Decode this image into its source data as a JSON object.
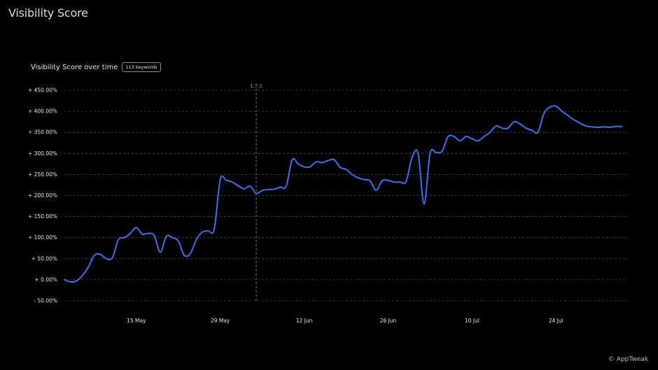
{
  "page": {
    "title": "Visibility Score"
  },
  "chart_header": {
    "title": "Visibility Score over time",
    "badge": "113 keywords"
  },
  "footer": {
    "copyright_symbol": "©",
    "brand": "AppTweak"
  },
  "colors": {
    "line": "#3d6cf5",
    "marker": "#9ea23a",
    "grid": "#4a4a4a",
    "text": "#e6e6e6"
  },
  "chart_data": {
    "type": "line",
    "title": "Visibility Score over time",
    "xlabel": "",
    "ylabel": "",
    "ylim": [
      -50,
      450
    ],
    "y_ticks": [
      450,
      400,
      350,
      300,
      250,
      200,
      150,
      100,
      50,
      0,
      -50
    ],
    "y_tick_labels": [
      "+ 450.00%",
      "+ 400.00%",
      "+ 350.00%",
      "+ 300.00%",
      "+ 250.00%",
      "+ 200.00%",
      "+ 150.00%",
      "+ 100.00%",
      "+ 50.00%",
      "+ 0.00%",
      "- 50.00%"
    ],
    "x_ticks": [
      "2024-05-15",
      "2024-05-29",
      "2024-06-12",
      "2024-06-26",
      "2024-07-10",
      "2024-07-24"
    ],
    "x_tick_labels": [
      "15 May",
      "29 May",
      "12 Jun",
      "26 Jun",
      "10 Jul",
      "24 Jul"
    ],
    "xlim": [
      "2024-05-03",
      "2024-08-05"
    ],
    "grid": true,
    "annotation": {
      "x": "2024-06-04",
      "label": "1.7.1"
    },
    "series": [
      {
        "x": [
          "2024-05-03",
          "2024-05-04",
          "2024-05-05",
          "2024-05-06",
          "2024-05-07",
          "2024-05-08",
          "2024-05-09",
          "2024-05-10",
          "2024-05-11",
          "2024-05-12",
          "2024-05-13",
          "2024-05-14",
          "2024-05-15",
          "2024-05-16",
          "2024-05-17",
          "2024-05-18",
          "2024-05-19",
          "2024-05-20",
          "2024-05-21",
          "2024-05-22",
          "2024-05-23",
          "2024-05-24",
          "2024-05-25",
          "2024-05-26",
          "2024-05-27",
          "2024-05-28",
          "2024-05-29",
          "2024-05-30",
          "2024-05-31",
          "2024-06-01",
          "2024-06-02",
          "2024-06-03",
          "2024-06-04",
          "2024-06-05",
          "2024-06-06",
          "2024-06-07",
          "2024-06-08",
          "2024-06-09",
          "2024-06-10",
          "2024-06-11",
          "2024-06-12",
          "2024-06-13",
          "2024-06-14",
          "2024-06-15",
          "2024-06-16",
          "2024-06-17",
          "2024-06-18",
          "2024-06-19",
          "2024-06-20",
          "2024-06-21",
          "2024-06-22",
          "2024-06-23",
          "2024-06-24",
          "2024-06-25",
          "2024-06-26",
          "2024-06-27",
          "2024-06-28",
          "2024-06-29",
          "2024-06-30",
          "2024-07-01",
          "2024-07-02",
          "2024-07-03",
          "2024-07-04",
          "2024-07-05",
          "2024-07-06",
          "2024-07-07",
          "2024-07-08",
          "2024-07-09",
          "2024-07-10",
          "2024-07-11",
          "2024-07-12",
          "2024-07-13",
          "2024-07-14",
          "2024-07-15",
          "2024-07-16",
          "2024-07-17",
          "2024-07-18",
          "2024-07-19",
          "2024-07-20",
          "2024-07-21",
          "2024-07-22",
          "2024-07-23",
          "2024-07-24",
          "2024-07-25",
          "2024-07-26",
          "2024-07-27",
          "2024-07-28",
          "2024-07-29",
          "2024-07-30",
          "2024-07-31",
          "2024-08-01",
          "2024-08-02",
          "2024-08-03",
          "2024-08-04"
        ],
        "values": [
          0,
          -5,
          -3,
          10,
          30,
          58,
          60,
          50,
          52,
          95,
          100,
          110,
          124,
          108,
          110,
          105,
          65,
          103,
          100,
          92,
          58,
          62,
          95,
          113,
          116,
          120,
          238,
          236,
          232,
          223,
          216,
          222,
          205,
          212,
          214,
          215,
          220,
          222,
          285,
          275,
          268,
          268,
          280,
          278,
          283,
          285,
          267,
          262,
          250,
          242,
          238,
          235,
          212,
          235,
          236,
          232,
          232,
          233,
          290,
          300,
          180,
          300,
          302,
          305,
          340,
          340,
          330,
          340,
          335,
          330,
          340,
          350,
          365,
          360,
          360,
          375,
          370,
          360,
          355,
          350,
          395,
          410,
          412,
          400,
          390,
          380,
          372,
          365,
          363,
          362,
          363,
          362,
          364,
          364
        ]
      }
    ]
  }
}
